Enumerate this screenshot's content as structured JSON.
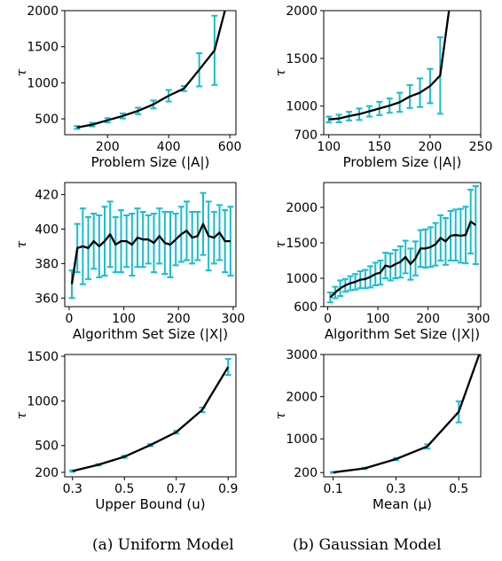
{
  "chart_data": [
    {
      "type": "line",
      "title": "",
      "xlabel": "Problem Size (|A|)",
      "ylabel": "τ",
      "xlim": [
        60,
        620
      ],
      "ylim": [
        280,
        2000
      ],
      "xticks": [
        200,
        400,
        600
      ],
      "yticks": [
        500,
        1000,
        1500,
        2000
      ],
      "series": [
        {
          "x": [
            100,
            150,
            200,
            250,
            300,
            350,
            400,
            450,
            500,
            550,
            590
          ],
          "y": [
            380,
            420,
            480,
            540,
            610,
            700,
            820,
            920,
            1180,
            1450,
            2100
          ],
          "err": [
            20,
            25,
            30,
            35,
            45,
            55,
            80,
            35,
            230,
            480,
            0
          ]
        }
      ]
    },
    {
      "type": "line",
      "title": "",
      "xlabel": "Problem Size (|A|)",
      "ylabel": "τ",
      "xlim": [
        95,
        250
      ],
      "ylim": [
        700,
        2000
      ],
      "xticks": [
        100,
        150,
        200,
        250
      ],
      "yticks": [
        700,
        1000,
        1500,
        2000
      ],
      "series": [
        {
          "x": [
            100,
            110,
            120,
            130,
            140,
            150,
            160,
            170,
            180,
            190,
            200,
            210,
            220
          ],
          "y": [
            860,
            870,
            895,
            915,
            945,
            975,
            1005,
            1040,
            1100,
            1140,
            1210,
            1320,
            2100
          ],
          "err": [
            30,
            40,
            45,
            60,
            55,
            70,
            75,
            100,
            120,
            150,
            180,
            400,
            0
          ]
        }
      ]
    },
    {
      "type": "line",
      "title": "",
      "xlabel": "Algorithm Set Size (|X|)",
      "ylabel": "τ",
      "xlim": [
        -8,
        305
      ],
      "ylim": [
        355,
        427
      ],
      "xticks": [
        0,
        100,
        200,
        300
      ],
      "yticks": [
        360,
        380,
        400,
        420
      ],
      "series": [
        {
          "x": [
            5,
            15,
            25,
            35,
            45,
            55,
            65,
            75,
            85,
            95,
            105,
            115,
            125,
            135,
            145,
            155,
            165,
            175,
            185,
            195,
            205,
            215,
            225,
            235,
            245,
            255,
            265,
            275,
            285,
            295
          ],
          "y": [
            368,
            389,
            390,
            389,
            393,
            390,
            393,
            397,
            391,
            393,
            393,
            391,
            395,
            394,
            394,
            392,
            396,
            392,
            391,
            394,
            397,
            399,
            395,
            396,
            403,
            396,
            395,
            398,
            393,
            393
          ],
          "err": [
            8,
            14,
            22,
            18,
            16,
            18,
            20,
            19,
            16,
            18,
            15,
            18,
            17,
            16,
            14,
            17,
            16,
            18,
            19,
            15,
            16,
            17,
            15,
            14,
            18,
            20,
            15,
            16,
            18,
            20
          ]
        }
      ]
    },
    {
      "type": "line",
      "title": "",
      "xlabel": "Algorithm Set Size (|X|)",
      "ylabel": "τ",
      "xlim": [
        -8,
        305
      ],
      "ylim": [
        600,
        2350
      ],
      "xticks": [
        0,
        100,
        200,
        300
      ],
      "yticks": [
        600,
        1000,
        1500,
        2000
      ],
      "series": [
        {
          "x": [
            5,
            15,
            25,
            35,
            45,
            55,
            65,
            75,
            85,
            95,
            105,
            115,
            125,
            135,
            145,
            155,
            165,
            175,
            185,
            195,
            205,
            215,
            225,
            235,
            245,
            255,
            265,
            275,
            285,
            295
          ],
          "y": [
            730,
            800,
            860,
            900,
            930,
            950,
            980,
            990,
            1020,
            1060,
            1080,
            1180,
            1160,
            1200,
            1230,
            1300,
            1200,
            1280,
            1420,
            1420,
            1440,
            1480,
            1570,
            1520,
            1600,
            1610,
            1600,
            1610,
            1800,
            1750
          ],
          "err": [
            70,
            80,
            110,
            90,
            100,
            110,
            120,
            130,
            150,
            160,
            170,
            180,
            190,
            200,
            220,
            230,
            220,
            240,
            260,
            270,
            280,
            300,
            320,
            330,
            350,
            360,
            380,
            400,
            450,
            550
          ]
        }
      ]
    },
    {
      "type": "line",
      "title": "",
      "xlabel": "Upper Bound (u)",
      "ylabel": "τ",
      "xlim": [
        0.27,
        0.93
      ],
      "ylim": [
        150,
        1520
      ],
      "xticks": [
        0.3,
        0.5,
        0.7,
        0.9
      ],
      "yticks": [
        200,
        500,
        1000,
        1500
      ],
      "series": [
        {
          "x": [
            0.3,
            0.4,
            0.5,
            0.6,
            0.7,
            0.8,
            0.9
          ],
          "y": [
            215,
            285,
            375,
            505,
            650,
            900,
            1380
          ],
          "err": [
            8,
            8,
            12,
            12,
            15,
            25,
            90
          ]
        }
      ]
    },
    {
      "type": "line",
      "title": "",
      "xlabel": "Mean (μ)",
      "ylabel": "τ",
      "xlim": [
        0.07,
        0.57
      ],
      "ylim": [
        100,
        3000
      ],
      "xticks": [
        0.1,
        0.3,
        0.5
      ],
      "yticks": [
        200,
        1000,
        2000,
        3000
      ],
      "series": [
        {
          "x": [
            0.1,
            0.2,
            0.3,
            0.4,
            0.5,
            0.57
          ],
          "y": [
            205,
            300,
            520,
            820,
            1640,
            3100
          ],
          "err": [
            10,
            15,
            25,
            50,
            250,
            0
          ]
        }
      ]
    }
  ],
  "captions": [
    "(a) Uniform Model",
    "(b) Gaussian Model"
  ],
  "colors": {
    "line": "#000000",
    "errorbar": "#17becf"
  }
}
